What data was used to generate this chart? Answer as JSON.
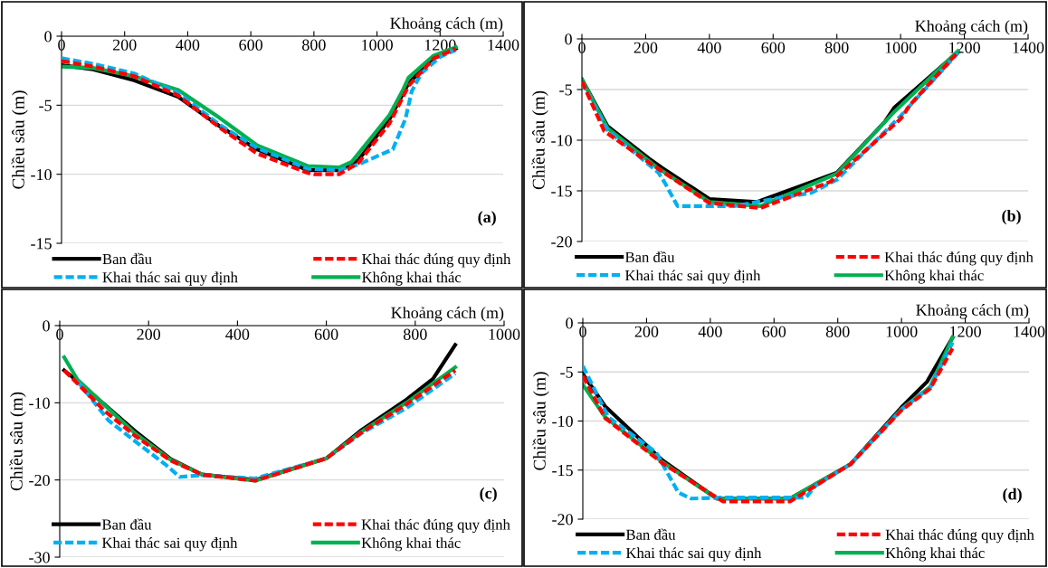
{
  "chart_data": [
    {
      "type": "line",
      "xlabel": "Khoảng cách (m)",
      "ylabel": "Chiều sâu (m)",
      "xlim": [
        0,
        1400
      ],
      "xticks": [
        0,
        200,
        400,
        600,
        800,
        1000,
        1200,
        1400
      ],
      "ylim": [
        -15,
        0
      ],
      "yticks": [
        0,
        -5,
        -10,
        -15
      ],
      "grid": "y",
      "legend": "bottom",
      "annotations": [
        "(a)"
      ],
      "series": [
        {
          "name": "Ban đầu",
          "color": "#000000",
          "line_style": "solid",
          "x": [
            0,
            100,
            230,
            370,
            500,
            620,
            780,
            880,
            940,
            1040,
            1100,
            1180,
            1250
          ],
          "values": [
            -2.1,
            -2.4,
            -3.2,
            -4.4,
            -6.5,
            -8.2,
            -9.7,
            -9.7,
            -9.0,
            -6.0,
            -3.4,
            -1.6,
            -0.9
          ]
        },
        {
          "name": "Khai thác đúng quy định",
          "color": "#ff0000",
          "line_style": "dashed",
          "x": [
            0,
            100,
            230,
            370,
            500,
            620,
            780,
            800,
            880,
            940,
            1040,
            1100,
            1180,
            1250
          ],
          "values": [
            -1.8,
            -2.2,
            -2.9,
            -4.3,
            -6.6,
            -8.5,
            -9.9,
            -10.0,
            -10.0,
            -9.2,
            -6.3,
            -3.6,
            -1.6,
            -0.9
          ]
        },
        {
          "name": "Khai thác sai quy định",
          "color": "#00b0f0",
          "line_style": "dashed",
          "x": [
            0,
            100,
            230,
            370,
            500,
            620,
            780,
            880,
            940,
            1050,
            1090,
            1110,
            1140,
            1200,
            1250
          ],
          "values": [
            -1.6,
            -2.0,
            -2.7,
            -4.1,
            -6.4,
            -8.1,
            -9.6,
            -9.7,
            -9.3,
            -8.2,
            -6.0,
            -4.0,
            -2.7,
            -1.5,
            -1.0
          ]
        },
        {
          "name": "Không khai thác",
          "color": "#00b050",
          "line_style": "solid",
          "x": [
            0,
            100,
            230,
            370,
            500,
            620,
            780,
            880,
            920,
            1040,
            1080,
            1100,
            1180,
            1250
          ],
          "values": [
            -2.2,
            -2.3,
            -2.9,
            -3.9,
            -5.9,
            -7.9,
            -9.4,
            -9.5,
            -9.1,
            -5.7,
            -4.0,
            -3.0,
            -1.4,
            -0.8
          ]
        }
      ]
    },
    {
      "type": "line",
      "xlabel": "Khoảng cách (m)",
      "ylabel": "Chiều sâu (m)",
      "xlim": [
        0,
        1400
      ],
      "xticks": [
        0,
        200,
        400,
        600,
        800,
        1000,
        1200,
        1400
      ],
      "ylim": [
        -20,
        0
      ],
      "yticks": [
        0,
        -5,
        -10,
        -15,
        -20
      ],
      "grid": "y",
      "legend": "bottom",
      "annotations": [
        "(b)"
      ],
      "series": [
        {
          "name": "Ban đầu",
          "color": "#000000",
          "line_style": "solid",
          "x": [
            0,
            80,
            210,
            250,
            400,
            550,
            750,
            800,
            950,
            980,
            1180
          ],
          "values": [
            -4.0,
            -8.6,
            -11.8,
            -12.7,
            -15.8,
            -16.1,
            -13.8,
            -13.2,
            -8.2,
            -6.8,
            -1.3
          ]
        },
        {
          "name": "Khai thác đúng quy định",
          "color": "#ff0000",
          "line_style": "dashed",
          "x": [
            0,
            70,
            210,
            400,
            560,
            780,
            1000,
            1030,
            1180
          ],
          "values": [
            -4.2,
            -9.1,
            -12.2,
            -16.2,
            -16.7,
            -14.1,
            -7.9,
            -6.5,
            -1.3
          ]
        },
        {
          "name": "Khai thác sai quy định",
          "color": "#00b0f0",
          "line_style": "dashed",
          "x": [
            0,
            80,
            240,
            260,
            300,
            400,
            480,
            600,
            720,
            800,
            1000,
            1180
          ],
          "values": [
            -4.3,
            -9.0,
            -13.2,
            -14.2,
            -16.5,
            -16.5,
            -16.5,
            -15.8,
            -15.2,
            -13.9,
            -7.6,
            -1.4
          ]
        },
        {
          "name": "Không khai thác",
          "color": "#00b050",
          "line_style": "solid",
          "x": [
            0,
            80,
            240,
            400,
            560,
            800,
            980,
            1180
          ],
          "values": [
            -4.0,
            -8.8,
            -12.8,
            -16.1,
            -16.5,
            -13.3,
            -7.2,
            -1.2
          ]
        }
      ]
    },
    {
      "type": "line",
      "xlabel": "Khoảng cách (m)",
      "ylabel": "Chiều sâu (m)",
      "xlim": [
        0,
        1000
      ],
      "xticks": [
        0,
        200,
        400,
        600,
        800,
        1000
      ],
      "ylim": [
        -30,
        0
      ],
      "yticks": [
        0,
        -10,
        -20,
        -30
      ],
      "grid": "y",
      "legend": "lower center",
      "annotations": [
        "(c)"
      ],
      "series": [
        {
          "name": "Ban đầu",
          "color": "#000000",
          "line_style": "solid",
          "x": [
            10,
            40,
            170,
            250,
            320,
            440,
            600,
            680,
            780,
            840,
            890
          ],
          "values": [
            -5.8,
            -7.2,
            -13.7,
            -17.3,
            -19.3,
            -20.0,
            -17.2,
            -13.5,
            -9.6,
            -6.9,
            -2.5
          ]
        },
        {
          "name": "Khai thác đúng quy định",
          "color": "#ff0000",
          "line_style": "dashed",
          "x": [
            10,
            40,
            100,
            170,
            250,
            320,
            440,
            600,
            680,
            780,
            890
          ],
          "values": [
            -5.8,
            -7.5,
            -11.0,
            -14.3,
            -17.5,
            -19.3,
            -20.1,
            -17.2,
            -13.8,
            -10.2,
            -5.8
          ]
        },
        {
          "name": "Khai thác sai quy định",
          "color": "#00b0f0",
          "line_style": "dashed",
          "x": [
            40,
            110,
            170,
            240,
            270,
            320,
            440,
            600,
            680,
            780,
            890
          ],
          "values": [
            -7.2,
            -12.3,
            -15.0,
            -18.1,
            -19.6,
            -19.4,
            -19.8,
            -17.2,
            -13.9,
            -10.7,
            -6.2
          ]
        },
        {
          "name": "Không khai thác",
          "color": "#00b050",
          "line_style": "solid",
          "x": [
            10,
            40,
            170,
            250,
            320,
            440,
            600,
            680,
            780,
            890
          ],
          "values": [
            -4.1,
            -7.0,
            -14.0,
            -17.4,
            -19.3,
            -20.1,
            -17.2,
            -13.7,
            -10.0,
            -5.4
          ]
        }
      ]
    },
    {
      "type": "line",
      "xlabel": "Khoảng cách (m)",
      "ylabel": "Chiều sâu (m)",
      "xlim": [
        0,
        1400
      ],
      "xticks": [
        0,
        200,
        400,
        600,
        800,
        1000,
        1200,
        1400
      ],
      "ylim": [
        -20,
        0
      ],
      "yticks": [
        0,
        -5,
        -10,
        -15,
        -20
      ],
      "grid": "y",
      "legend": "bottom",
      "annotations": [
        "(d)"
      ],
      "series": [
        {
          "name": "Ban đầu",
          "color": "#000000",
          "line_style": "solid",
          "x": [
            0,
            70,
            250,
            420,
            650,
            840,
            1000,
            1080,
            1160
          ],
          "values": [
            -5.2,
            -8.5,
            -14.0,
            -17.9,
            -17.9,
            -14.4,
            -8.6,
            -6.0,
            -1.5
          ]
        },
        {
          "name": "Khai thác đúng quy định",
          "color": "#ff0000",
          "line_style": "dashed",
          "x": [
            0,
            70,
            250,
            440,
            650,
            840,
            1000,
            1090,
            1160
          ],
          "values": [
            -5.4,
            -9.7,
            -14.3,
            -18.2,
            -18.2,
            -14.4,
            -8.9,
            -6.7,
            -2.6
          ]
        },
        {
          "name": "Khai thác sai quy định",
          "color": "#00b0f0",
          "line_style": "dashed",
          "x": [
            0,
            80,
            230,
            300,
            340,
            440,
            700,
            730,
            840,
            1000,
            1090,
            1160
          ],
          "values": [
            -4.4,
            -9.6,
            -13.2,
            -17.3,
            -17.9,
            -17.8,
            -17.8,
            -16.6,
            -14.4,
            -8.8,
            -6.6,
            -2.0
          ]
        },
        {
          "name": "Không khai thác",
          "color": "#00b050",
          "line_style": "solid",
          "x": [
            0,
            70,
            250,
            420,
            650,
            840,
            1000,
            1090,
            1160
          ],
          "values": [
            -6.3,
            -9.6,
            -14.2,
            -17.9,
            -17.9,
            -14.4,
            -8.8,
            -6.5,
            -1.5
          ]
        }
      ]
    }
  ]
}
